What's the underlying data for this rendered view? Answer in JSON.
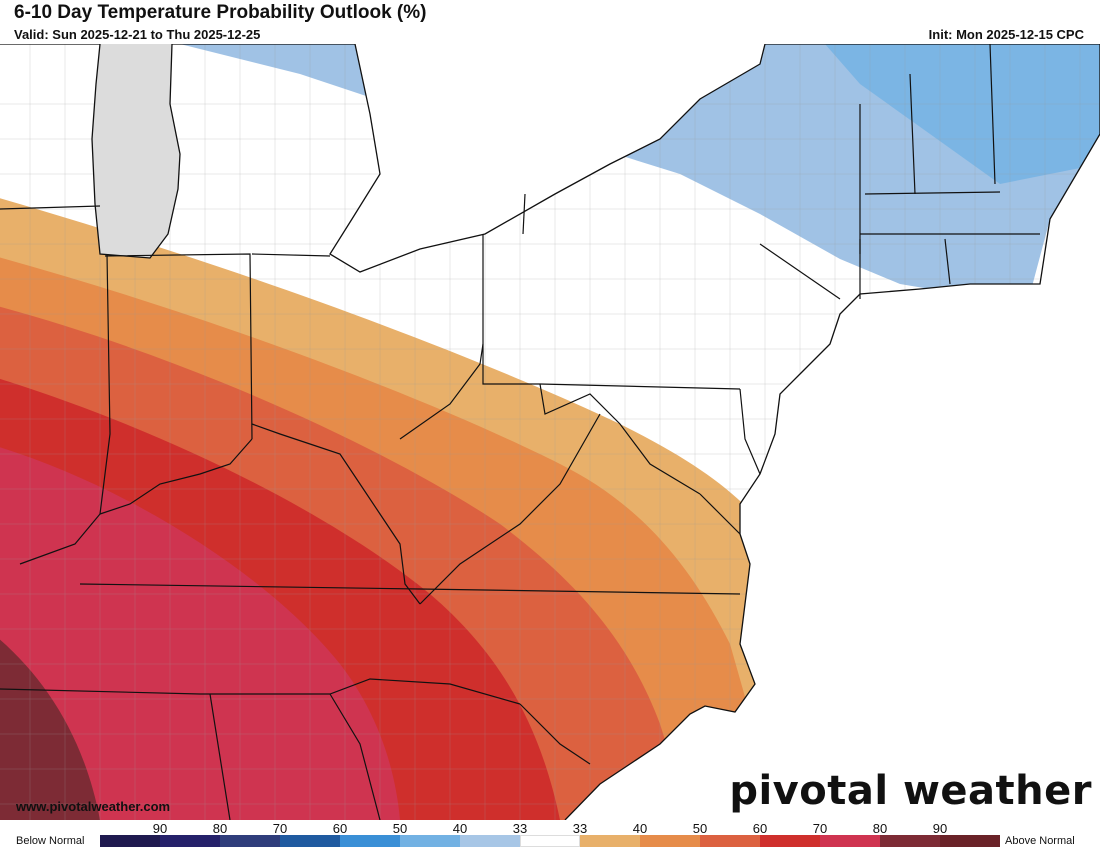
{
  "header": {
    "title": "6-10 Day Temperature Probability Outlook (%)",
    "valid": "Valid: Sun 2025-12-21 to Thu 2025-12-25",
    "init": "Init: Mon 2025-12-15 CPC"
  },
  "branding": {
    "logo_text": "pivotal weather",
    "website": "www.pivotalweather.com"
  },
  "legend": {
    "left_label": "Below Normal",
    "right_label": "Above Normal",
    "bins": [
      {
        "label": "90",
        "color": "#1f1a4f"
      },
      {
        "label": "80",
        "color": "#25216a"
      },
      {
        "label": "70",
        "color": "#2f3d7b"
      },
      {
        "label": "60",
        "color": "#1f5aa0"
      },
      {
        "label": "50",
        "color": "#3a8fd6"
      },
      {
        "label": "40",
        "color": "#72b1e3"
      },
      {
        "label": "33",
        "color": "#a7c6e6"
      },
      {
        "label": "33",
        "color": "#ffffff"
      },
      {
        "label": "40",
        "color": "#e8b06a"
      },
      {
        "label": "50",
        "color": "#e68c4a"
      },
      {
        "label": "60",
        "color": "#dc6140"
      },
      {
        "label": "70",
        "color": "#cf2f2c"
      },
      {
        "label": "80",
        "color": "#cf3450"
      },
      {
        "label": "90",
        "color": "#7d2b35"
      },
      {
        "label": "",
        "color": "#6a2228"
      }
    ]
  },
  "map": {
    "water_color": "#dcdcdc",
    "land_color": "#ffffff"
  }
}
